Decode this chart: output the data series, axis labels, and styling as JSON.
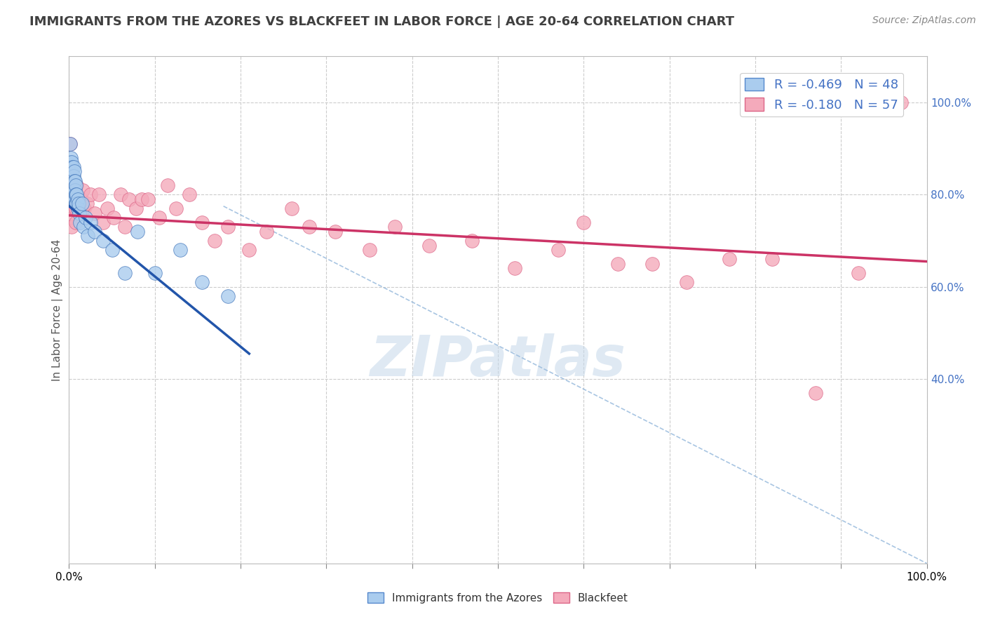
{
  "title": "IMMIGRANTS FROM THE AZORES VS BLACKFEET IN LABOR FORCE | AGE 20-64 CORRELATION CHART",
  "source": "Source: ZipAtlas.com",
  "ylabel": "In Labor Force | Age 20-64",
  "xlim": [
    0.0,
    1.0
  ],
  "ylim": [
    0.0,
    1.1
  ],
  "right_ytick_labels": [
    "40.0%",
    "60.0%",
    "80.0%",
    "100.0%"
  ],
  "right_ytick_values": [
    0.4,
    0.6,
    0.8,
    1.0
  ],
  "bottom_xtick_labels": [
    "0.0%",
    "",
    "",
    "",
    "",
    "",
    "",
    "",
    "",
    "",
    "100.0%"
  ],
  "bottom_xtick_values": [
    0.0,
    0.1,
    0.2,
    0.3,
    0.4,
    0.5,
    0.6,
    0.7,
    0.8,
    0.9,
    1.0
  ],
  "legend_entries": [
    {
      "label": "R = -0.469   N = 48",
      "facecolor": "#aaccee",
      "edgecolor": "#5588cc"
    },
    {
      "label": "R = -0.180   N = 57",
      "facecolor": "#f4aabb",
      "edgecolor": "#dd6688"
    }
  ],
  "bottom_legend": [
    {
      "label": "Immigrants from the Azores",
      "facecolor": "#aaccee",
      "edgecolor": "#5588cc"
    },
    {
      "label": "Blackfeet",
      "facecolor": "#f4aabb",
      "edgecolor": "#dd6688"
    }
  ],
  "series_blue": {
    "name": "Immigrants from the Azores",
    "facecolor": "#aaccee",
    "edgecolor": "#4477bb",
    "x": [
      0.001,
      0.001,
      0.002,
      0.002,
      0.003,
      0.003,
      0.003,
      0.003,
      0.004,
      0.004,
      0.004,
      0.004,
      0.004,
      0.005,
      0.005,
      0.005,
      0.005,
      0.006,
      0.006,
      0.006,
      0.006,
      0.007,
      0.007,
      0.007,
      0.008,
      0.008,
      0.008,
      0.009,
      0.009,
      0.01,
      0.01,
      0.011,
      0.012,
      0.013,
      0.015,
      0.017,
      0.019,
      0.022,
      0.025,
      0.03,
      0.04,
      0.05,
      0.065,
      0.08,
      0.1,
      0.13,
      0.155,
      0.185
    ],
    "y": [
      0.91,
      0.87,
      0.88,
      0.85,
      0.87,
      0.85,
      0.83,
      0.81,
      0.86,
      0.84,
      0.83,
      0.81,
      0.79,
      0.86,
      0.84,
      0.82,
      0.8,
      0.85,
      0.83,
      0.81,
      0.79,
      0.83,
      0.81,
      0.79,
      0.82,
      0.8,
      0.78,
      0.8,
      0.78,
      0.79,
      0.77,
      0.78,
      0.76,
      0.74,
      0.78,
      0.73,
      0.75,
      0.71,
      0.74,
      0.72,
      0.7,
      0.68,
      0.63,
      0.72,
      0.63,
      0.68,
      0.61,
      0.58
    ]
  },
  "series_pink": {
    "name": "Blackfeet",
    "facecolor": "#f4aabb",
    "edgecolor": "#dd6688",
    "x": [
      0.001,
      0.001,
      0.002,
      0.003,
      0.004,
      0.005,
      0.006,
      0.006,
      0.007,
      0.008,
      0.008,
      0.009,
      0.01,
      0.012,
      0.014,
      0.016,
      0.018,
      0.021,
      0.025,
      0.03,
      0.035,
      0.04,
      0.045,
      0.052,
      0.06,
      0.065,
      0.07,
      0.078,
      0.085,
      0.092,
      0.105,
      0.115,
      0.125,
      0.14,
      0.155,
      0.17,
      0.185,
      0.21,
      0.23,
      0.26,
      0.28,
      0.31,
      0.35,
      0.38,
      0.42,
      0.47,
      0.52,
      0.57,
      0.6,
      0.64,
      0.68,
      0.72,
      0.77,
      0.82,
      0.87,
      0.92,
      0.97
    ],
    "y": [
      0.91,
      0.78,
      0.75,
      0.73,
      0.84,
      0.8,
      0.8,
      0.77,
      0.8,
      0.77,
      0.74,
      0.82,
      0.77,
      0.79,
      0.79,
      0.81,
      0.77,
      0.78,
      0.8,
      0.76,
      0.8,
      0.74,
      0.77,
      0.75,
      0.8,
      0.73,
      0.79,
      0.77,
      0.79,
      0.79,
      0.75,
      0.82,
      0.77,
      0.8,
      0.74,
      0.7,
      0.73,
      0.68,
      0.72,
      0.77,
      0.73,
      0.72,
      0.68,
      0.73,
      0.69,
      0.7,
      0.64,
      0.68,
      0.74,
      0.65,
      0.65,
      0.61,
      0.66,
      0.66,
      0.37,
      0.63,
      1.0
    ]
  },
  "blue_trendline": {
    "x_start": 0.0,
    "x_end": 0.21,
    "y_start": 0.775,
    "y_end": 0.455,
    "color": "#2255aa"
  },
  "pink_trendline": {
    "x_start": 0.0,
    "x_end": 1.0,
    "y_start": 0.755,
    "y_end": 0.655,
    "color": "#cc3366"
  },
  "dashed_line": {
    "x_start": 0.18,
    "x_end": 1.0,
    "y_start": 0.775,
    "y_end": 0.0,
    "color": "#99bbdd"
  },
  "background_color": "#ffffff",
  "grid_color": "#cccccc",
  "watermark": "ZIPatlas",
  "watermark_color": "#c5d8ea",
  "title_color": "#404040",
  "axis_label_color": "#555555",
  "tick_label_color_right": "#4472c4",
  "source_color": "#888888"
}
